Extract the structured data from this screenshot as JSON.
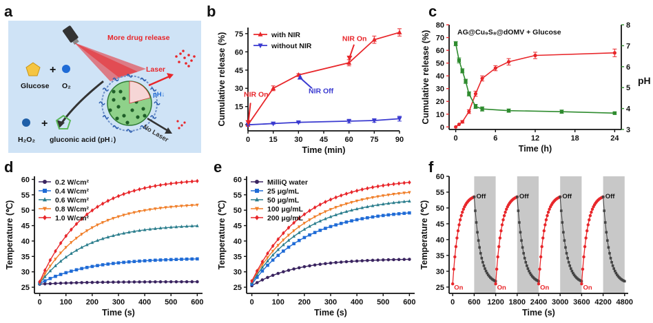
{
  "panel_labels": [
    "a",
    "b",
    "c",
    "d",
    "e",
    "f"
  ],
  "schematic": {
    "more_drug_release": "More drug release",
    "laser": "Laser",
    "ph_down": "pH↓",
    "no_laser": "No Laser",
    "glucose": "Glucose",
    "o2": "O₂",
    "h2o2": "H₂O₂",
    "gluconic": "gluconic acid (pH↓)",
    "plus": "+",
    "colors": {
      "background": "#cfe3f6",
      "red": "#e8262a",
      "blue": "#1f6bd6",
      "glucose": "#f5c542",
      "gluconic": "#5cb85c",
      "nano": "#3e9a4b"
    }
  },
  "chart_data": [
    {
      "id": "b",
      "type": "line",
      "xlabel": "Time (min)",
      "ylabel": "Cumulative release (%)",
      "xlim": [
        0,
        90
      ],
      "ylim": [
        -5,
        80
      ],
      "xticks": [
        0,
        15,
        30,
        45,
        60,
        75,
        90
      ],
      "yticks": [
        0,
        15,
        30,
        45,
        60,
        75
      ],
      "legend_position": "top-left",
      "series": [
        {
          "name": "with NIR",
          "color": "#e8262a",
          "marker": "triangle",
          "x": [
            0,
            15,
            30,
            60,
            75,
            90
          ],
          "y": [
            0,
            30,
            41,
            51,
            70,
            76
          ],
          "err": [
            0,
            2,
            1,
            2.5,
            3,
            3
          ]
        },
        {
          "name": "without NIR",
          "color": "#3a3ad0",
          "marker": "triangle-down",
          "x": [
            0,
            15,
            30,
            60,
            75,
            90
          ],
          "y": [
            0,
            1,
            2,
            3,
            3.5,
            5
          ],
          "err": [
            0,
            0.5,
            0.5,
            1.5,
            1.5,
            2
          ]
        }
      ],
      "annotations": [
        {
          "text": "NIR On",
          "color": "#e8262a"
        },
        {
          "text": "NIR Off",
          "color": "#3a3ad0"
        },
        {
          "text": "NIR On",
          "color": "#e8262a"
        }
      ]
    },
    {
      "id": "c",
      "type": "line",
      "title": "AG@Cu₉S₈@dOMV + Glucose",
      "xlabel": "Time (h)",
      "ylabel": "Cumulative release (%)",
      "y2label": "pH",
      "xlim": [
        -1,
        25
      ],
      "ylim": [
        -2,
        80
      ],
      "y2lim": [
        3,
        8
      ],
      "xticks": [
        0,
        6,
        12,
        18,
        24
      ],
      "yticks": [
        0,
        10,
        20,
        30,
        40,
        50,
        60,
        70,
        80
      ],
      "y2ticks": [
        3,
        4,
        5,
        6,
        7,
        8
      ],
      "series": [
        {
          "name": "release",
          "color": "#e8262a",
          "axis": "left",
          "x": [
            0,
            0.5,
            1,
            2,
            3,
            4,
            6,
            8,
            12,
            24
          ],
          "y": [
            0,
            2,
            4,
            12,
            26,
            38,
            46,
            51,
            56,
            58
          ],
          "err": [
            0,
            0,
            1,
            1.5,
            2,
            2,
            2,
            2.5,
            2.5,
            3
          ]
        },
        {
          "name": "pH",
          "color": "#2e8b2e",
          "axis": "right",
          "x": [
            0,
            0.5,
            1,
            1.5,
            2,
            3,
            4,
            8,
            16,
            24
          ],
          "y": [
            7.1,
            6.3,
            5.8,
            5.3,
            4.7,
            4.1,
            3.98,
            3.9,
            3.85,
            3.78
          ],
          "err": [
            0.1,
            0.12,
            0.1,
            0.1,
            0.1,
            0.1,
            0.1,
            0.08,
            0.08,
            0.05
          ]
        }
      ]
    },
    {
      "id": "d",
      "type": "line",
      "xlabel": "Time (s)",
      "ylabel": "Temperature (℃)",
      "xlim": [
        -20,
        620
      ],
      "ylim": [
        23,
        61
      ],
      "xticks": [
        0,
        100,
        200,
        300,
        400,
        500,
        600
      ],
      "yticks": [
        25,
        30,
        35,
        40,
        45,
        50,
        55,
        60
      ],
      "legend_position": "top-left",
      "x": [
        0,
        20,
        40,
        60,
        80,
        100,
        120,
        140,
        160,
        180,
        200,
        220,
        240,
        260,
        280,
        300,
        320,
        340,
        360,
        380,
        400,
        420,
        440,
        460,
        480,
        500,
        520,
        540,
        560,
        580,
        600
      ],
      "series": [
        {
          "name": "0.2 W/cm²",
          "color": "#3a2460",
          "marker": "circle",
          "plateau": 26.8,
          "start": 26,
          "rate": 0.006
        },
        {
          "name": "0.4 W/cm²",
          "color": "#1f6bd6",
          "marker": "square",
          "plateau": 34.5,
          "start": 26.2,
          "rate": 0.0055
        },
        {
          "name": "0.6 W/cm²",
          "color": "#2a7d8c",
          "marker": "triangle",
          "plateau": 45.5,
          "start": 26.3,
          "rate": 0.0058
        },
        {
          "name": "0.8 W/cm²",
          "color": "#f07e28",
          "marker": "triangle-down",
          "plateau": 52.5,
          "start": 26.5,
          "rate": 0.0058
        },
        {
          "name": "1.0 W/cm²",
          "color": "#e8262a",
          "marker": "diamond",
          "plateau": 60.5,
          "start": 26.8,
          "rate": 0.0058
        }
      ]
    },
    {
      "id": "e",
      "type": "line",
      "xlabel": "Time (s)",
      "ylabel": "Temperature (℃)",
      "xlim": [
        -20,
        620
      ],
      "ylim": [
        23,
        61
      ],
      "xticks": [
        0,
        100,
        200,
        300,
        400,
        500,
        600
      ],
      "yticks": [
        25,
        30,
        35,
        40,
        45,
        50,
        55,
        60
      ],
      "legend_position": "top-left",
      "x": [
        0,
        20,
        40,
        60,
        80,
        100,
        120,
        140,
        160,
        180,
        200,
        220,
        240,
        260,
        280,
        300,
        320,
        340,
        360,
        380,
        400,
        420,
        440,
        460,
        480,
        500,
        520,
        540,
        560,
        580,
        600
      ],
      "series": [
        {
          "name": "MilliQ water",
          "color": "#3a2460",
          "marker": "circle",
          "plateau": 34.3,
          "start": 25.5,
          "rate": 0.006
        },
        {
          "name": "25 μg/mL",
          "color": "#1f6bd6",
          "marker": "square",
          "plateau": 50.5,
          "start": 26,
          "rate": 0.0048
        },
        {
          "name": "50 μg/mL",
          "color": "#2a7d8c",
          "marker": "triangle",
          "plateau": 54.5,
          "start": 26.5,
          "rate": 0.0048
        },
        {
          "name": "100 μg/mL",
          "color": "#f07e28",
          "marker": "triangle-down",
          "plateau": 57.5,
          "start": 27,
          "rate": 0.0048
        },
        {
          "name": "200 μg/mL",
          "color": "#e8262a",
          "marker": "diamond",
          "plateau": 60.5,
          "start": 27,
          "rate": 0.0052
        }
      ]
    },
    {
      "id": "f",
      "type": "line",
      "xlabel": "Time (s)",
      "ylabel": "Temperature (℃)",
      "xlim": [
        -100,
        4900
      ],
      "ylim": [
        23,
        60
      ],
      "xticks": [
        0,
        600,
        1200,
        1800,
        2400,
        3000,
        3600,
        4200,
        4800
      ],
      "yticks": [
        25,
        30,
        35,
        40,
        45,
        50,
        55,
        60
      ],
      "cycles": 4,
      "on_label": "On",
      "off_label": "Off",
      "on_color": "#e8262a",
      "off_color": "#444444",
      "shade": "#c8c8c8",
      "t_low": 26,
      "t_high": 53.5
    }
  ]
}
